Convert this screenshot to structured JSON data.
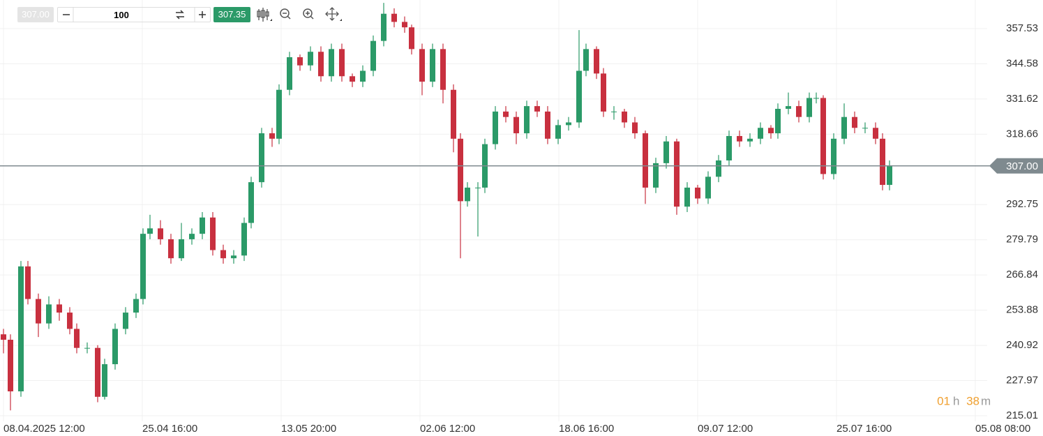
{
  "toolbar": {
    "bid": "307.00",
    "quantity": "100",
    "ask": "307.35"
  },
  "timer": {
    "hours": "01",
    "h": "h",
    "minutes": "38",
    "m": "m"
  },
  "chart_data": {
    "type": "candlestick",
    "x": [
      1,
      3,
      6,
      8,
      11,
      14,
      17,
      20,
      22,
      25,
      28,
      30,
      33,
      36,
      39,
      41,
      43,
      46,
      49,
      52,
      55,
      58,
      61,
      64,
      67,
      70,
      72,
      75,
      78,
      80,
      83,
      86,
      89,
      92,
      95,
      98,
      101,
      104,
      107,
      110,
      113,
      116,
      118,
      121,
      124,
      127,
      130,
      132,
      134,
      137,
      139,
      142,
      145,
      148,
      151,
      154,
      157,
      160,
      163,
      166,
      168,
      171,
      173,
      176,
      179,
      182,
      185,
      188,
      191,
      194,
      197,
      200,
      203,
      206,
      209,
      212,
      215,
      218,
      221,
      223,
      226,
      229,
      232,
      234,
      236,
      239,
      242,
      245,
      248,
      251,
      253,
      255
    ],
    "open": [
      245,
      243,
      224,
      270,
      258,
      249,
      256,
      253,
      247,
      240,
      240,
      222,
      234,
      247,
      253,
      258,
      282,
      284,
      280,
      273,
      280,
      282,
      288,
      276,
      273,
      274,
      286,
      301,
      319,
      317,
      335,
      347,
      344,
      349,
      340,
      350,
      340,
      338,
      342,
      353,
      363,
      360,
      358,
      350,
      338,
      350,
      335,
      317,
      294,
      299,
      299,
      315,
      327,
      325,
      319,
      329,
      327,
      317,
      322,
      323,
      342,
      350,
      341,
      327,
      327,
      323,
      319,
      299,
      308,
      316,
      292,
      299,
      295,
      303,
      309,
      318,
      316,
      317,
      321,
      319,
      328,
      329,
      325,
      332,
      332,
      304,
      317,
      325,
      321,
      321,
      317,
      300
    ],
    "high": [
      247,
      245,
      272,
      272,
      260,
      259,
      258,
      255,
      249,
      242,
      241,
      236,
      249,
      255,
      260,
      284,
      289,
      287,
      282,
      286,
      284,
      290,
      290,
      278,
      276,
      288,
      303,
      321,
      321,
      337,
      349,
      348,
      351,
      351,
      352,
      352,
      341,
      344,
      355,
      367,
      365,
      362,
      359,
      352,
      352,
      352,
      337,
      319,
      301,
      301,
      317,
      329,
      329,
      327,
      331,
      331,
      329,
      324,
      325,
      357,
      352,
      351,
      343,
      329,
      328,
      325,
      320,
      310,
      318,
      317,
      301,
      300,
      305,
      311,
      320,
      320,
      319,
      323,
      322,
      330,
      334,
      331,
      334,
      334,
      333,
      319,
      330,
      327,
      323,
      323,
      319,
      309
    ],
    "low": [
      238,
      217,
      222,
      256,
      244,
      247,
      250,
      245,
      238,
      238,
      220,
      221,
      232,
      245,
      251,
      256,
      280,
      278,
      271,
      272,
      278,
      280,
      274,
      271,
      271,
      272,
      284,
      299,
      314,
      315,
      333,
      342,
      342,
      338,
      338,
      338,
      336,
      336,
      340,
      351,
      358,
      356,
      348,
      333,
      336,
      330,
      312,
      273,
      292,
      281,
      297,
      313,
      323,
      315,
      317,
      325,
      315,
      315,
      320,
      321,
      340,
      339,
      325,
      324,
      321,
      317,
      293,
      297,
      306,
      289,
      290,
      293,
      293,
      301,
      307,
      314,
      314,
      315,
      317,
      317,
      326,
      323,
      323,
      330,
      302,
      302,
      315,
      319,
      319,
      315,
      298,
      298
    ],
    "close": [
      243,
      224,
      270,
      258,
      249,
      256,
      253,
      247,
      240,
      240,
      222,
      234,
      247,
      253,
      258,
      282,
      284,
      280,
      273,
      280,
      282,
      288,
      276,
      273,
      274,
      286,
      301,
      319,
      317,
      335,
      347,
      344,
      349,
      340,
      350,
      340,
      338,
      342,
      353,
      363,
      360,
      358,
      350,
      338,
      350,
      335,
      317,
      294,
      299,
      299,
      315,
      327,
      325,
      319,
      329,
      327,
      317,
      322,
      323,
      342,
      350,
      341,
      327,
      327,
      323,
      319,
      299,
      308,
      316,
      292,
      299,
      295,
      303,
      309,
      318,
      316,
      317,
      321,
      319,
      328,
      329,
      325,
      332,
      332,
      304,
      317,
      325,
      321,
      321,
      317,
      300,
      307
    ],
    "up_color": "#2b9a68",
    "down_color": "#c8303f",
    "xlim": [
      0,
      283
    ],
    "xticks": [
      {
        "value": 1,
        "label": "08.04.2025 12:00"
      },
      {
        "value": 40.8,
        "label": "25.04 16:00"
      },
      {
        "value": 80.6,
        "label": "13.05 20:00"
      },
      {
        "value": 120.4,
        "label": "02.06 12:00"
      },
      {
        "value": 160.2,
        "label": "18.06 16:00"
      },
      {
        "value": 200,
        "label": "09.07 12:00"
      },
      {
        "value": 239.8,
        "label": "25.07 16:00"
      },
      {
        "value": 279.6,
        "label": "05.08 08:00"
      }
    ],
    "ylim": [
      212.96,
      368.06
    ],
    "yticks": [
      215.01,
      227.97,
      240.92,
      253.88,
      266.84,
      279.79,
      292.75,
      318.66,
      331.62,
      344.58,
      357.53
    ],
    "last_price": {
      "value": 307,
      "label": "307.00"
    },
    "grid": true
  }
}
